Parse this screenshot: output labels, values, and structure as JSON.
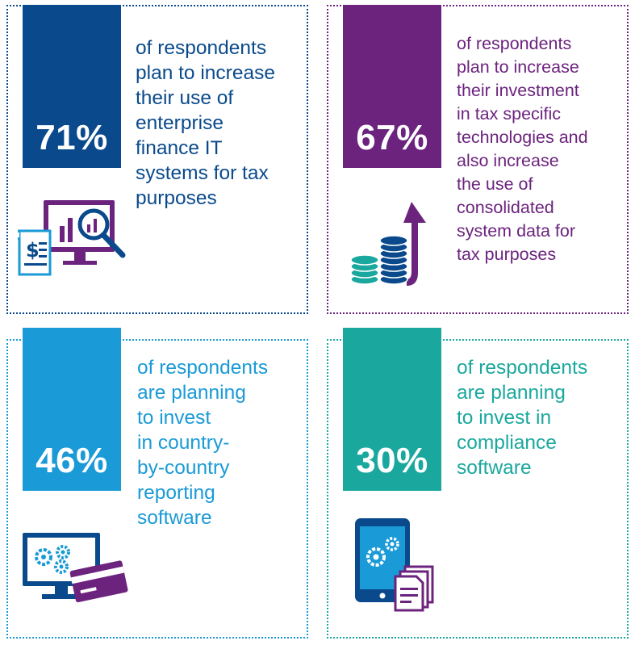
{
  "colors": {
    "dark_blue": "#0a4a8c",
    "purple": "#6c237e",
    "light_blue": "#1a9ad6",
    "teal": "#1aa89e"
  },
  "cards": [
    {
      "stat": "71%",
      "lines": [
        "of respondents",
        "plan to increase",
        "their use of",
        "enterprise",
        "finance IT",
        "systems for tax",
        "purposes"
      ],
      "icon": "invoice-monitor-magnifier-icon"
    },
    {
      "stat": "67%",
      "lines": [
        "of respondents",
        "plan to increase",
        "their investment",
        "in tax specific",
        "technologies and",
        "also increase",
        "the use of",
        "consolidated",
        "system data for",
        "tax purposes"
      ],
      "icon": "coin-stacks-growth-arrow-icon"
    },
    {
      "stat": "46%",
      "lines": [
        "of respondents",
        "are planning",
        "to invest",
        "in country-",
        "by-country",
        "reporting",
        "software"
      ],
      "icon": "monitor-gears-credit-card-icon"
    },
    {
      "stat": "30%",
      "lines": [
        "of respondents",
        "are planning",
        "to invest in",
        "compliance",
        "software"
      ],
      "icon": "tablet-gears-documents-icon"
    }
  ]
}
